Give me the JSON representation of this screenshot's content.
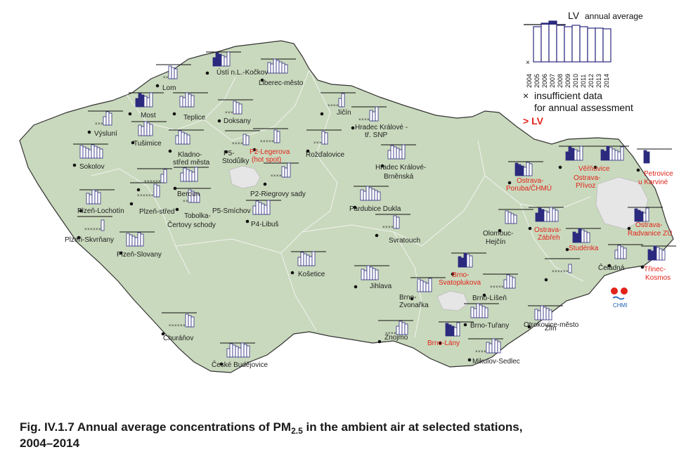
{
  "legend": {
    "lv_label": "LV",
    "lv_suffix": "annual average",
    "years": [
      "2004",
      "2005",
      "2006",
      "2007",
      "2008",
      "2009",
      "2010",
      "2011",
      "2012",
      "2013",
      "2014"
    ],
    "insufficient_line1": "insufficient data",
    "insufficient_line2": "for annual assessment",
    "exceed_label": "> LV",
    "colors": {
      "bar_fill": "#ffffff",
      "bar_exceed": "#2b2a7e",
      "bar_stroke": "#2b2a7e",
      "label_red": "#e2231a",
      "land": "#c9d9bd",
      "prague": "#e6e6e6"
    }
  },
  "stations": [
    {
      "name": "Ústí n.L.-Kočkov",
      "red": false
    },
    {
      "name": "Liberec-město",
      "red": false
    },
    {
      "name": "Lom",
      "red": false
    },
    {
      "name": "Most",
      "red": false
    },
    {
      "name": "Teplice",
      "red": false
    },
    {
      "name": "Doksany",
      "red": false
    },
    {
      "name": "Výsluní",
      "red": false
    },
    {
      "name": "Tušimice",
      "red": false
    },
    {
      "name": "Sokolov",
      "red": false
    },
    {
      "name": "Kladno-",
      "red": false
    },
    {
      "name": "střed města",
      "red": false
    },
    {
      "name": "P5-",
      "red": false
    },
    {
      "name": "Stodůlky",
      "red": false
    },
    {
      "name": "P2-Legerova",
      "red": true
    },
    {
      "name": "(hot spot)",
      "red": true
    },
    {
      "name": "Beroun",
      "red": false
    },
    {
      "name": "P2-Riegrovy sady",
      "red": false
    },
    {
      "name": "P5-Smíchov",
      "red": false
    },
    {
      "name": "P4-Libuš",
      "red": false
    },
    {
      "name": "Plzeň-Lochotín",
      "red": false
    },
    {
      "name": "Plzeň-střed",
      "red": false
    },
    {
      "name": "Tobolka-",
      "red": false
    },
    {
      "name": "Čertovy schody",
      "red": false
    },
    {
      "name": "Plzeň-Skvrňany",
      "red": false
    },
    {
      "name": "Plzeň-Slovany",
      "red": false
    },
    {
      "name": "Jičín",
      "red": false
    },
    {
      "name": "Hradec Králové -",
      "red": false
    },
    {
      "name": "tř. SNP",
      "red": false
    },
    {
      "name": "Rožďalovice",
      "red": false
    },
    {
      "name": "Hradec Králové-",
      "red": false
    },
    {
      "name": "Brněnská",
      "red": false
    },
    {
      "name": "Pardubice Dukla",
      "red": false
    },
    {
      "name": "Svratouch",
      "red": false
    },
    {
      "name": "Košetice",
      "red": false
    },
    {
      "name": "Jihlava",
      "red": false
    },
    {
      "name": "Churáňov",
      "red": false
    },
    {
      "name": "České Budějovice",
      "red": false
    },
    {
      "name": "Brno-",
      "red": true
    },
    {
      "name": "Svatoplukova",
      "red": true
    },
    {
      "name": "Brno-",
      "red": false
    },
    {
      "name": "Zvonařka",
      "red": false
    },
    {
      "name": "Brno-Líšeň",
      "red": false
    },
    {
      "name": "Brno-Tuřany",
      "red": false
    },
    {
      "name": "Brno-Lány",
      "red": true
    },
    {
      "name": "Znojmo",
      "red": false
    },
    {
      "name": "Mikulov-Sedlec",
      "red": false
    },
    {
      "name": "Olomouc-",
      "red": false
    },
    {
      "name": "Hejčín",
      "red": false
    },
    {
      "name": "Otrokovice-město",
      "red": false
    },
    {
      "name": "Zlín",
      "red": false
    },
    {
      "name": "Ostrava-",
      "red": true
    },
    {
      "name": "Poruba/ČHMÚ",
      "red": true
    },
    {
      "name": "Ostrava-",
      "red": true
    },
    {
      "name": "Přívoz",
      "red": true
    },
    {
      "name": "Věřňovice",
      "red": true
    },
    {
      "name": "Petrovice",
      "red": true
    },
    {
      "name": "u Karviné",
      "red": true
    },
    {
      "name": "Ostrava-",
      "red": true
    },
    {
      "name": "Zábřeh",
      "red": true
    },
    {
      "name": "Studénka",
      "red": true
    },
    {
      "name": "Ostrava-",
      "red": true
    },
    {
      "name": "Radvanice ZÚ",
      "red": true
    },
    {
      "name": "Čeladná",
      "red": false
    },
    {
      "name": "Třinec-",
      "red": true
    },
    {
      "name": "Kosmos",
      "red": true
    }
  ],
  "logo_text": "CHMI",
  "caption": {
    "prefix": "Fig. IV.1.7  Annual average concentrations of PM",
    "subscript": "2.5",
    "suffix": " in the ambient air at selected stations,",
    "line2": "2004–2014"
  }
}
